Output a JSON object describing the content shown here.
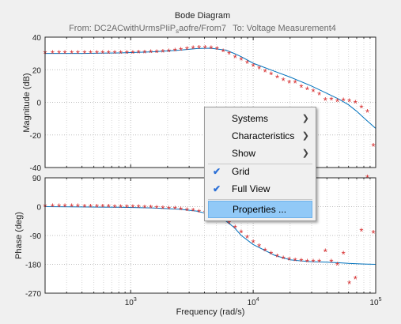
{
  "title": "Bode Diagram",
  "subtitle": {
    "from_prefix": "From: DC2ACwithUrmsPIiP",
    "from_subscript": "s",
    "from_suffix": "aofre/From7",
    "to": "To: Voltage Measurement4"
  },
  "xlabel": "Frequency  (rad/s)",
  "context_menu": {
    "items": [
      {
        "label": "Systems",
        "submenu": true
      },
      {
        "label": "Characteristics",
        "submenu": true
      },
      {
        "label": "Show",
        "submenu": true
      },
      {
        "label": "Grid",
        "checked": true
      },
      {
        "label": "Full View",
        "checked": true
      },
      {
        "label": "Properties ...",
        "highlighted": true
      }
    ]
  },
  "colors": {
    "line": "#0072bd",
    "markers": "#d62728",
    "highlight": "#91c9f7"
  },
  "chart_data": [
    {
      "type": "line",
      "panel": "magnitude",
      "ylabel": "Magnitude (dB)",
      "xscale": "log",
      "xlim": [
        200,
        100000
      ],
      "ylim": [
        -40,
        40
      ],
      "yticks": [
        40,
        20,
        0,
        -20,
        -40
      ],
      "grid": true,
      "series": [
        {
          "style": "line",
          "x": [
            200,
            400,
            800,
            1500,
            2500,
            3500,
            4500,
            6000,
            7000,
            8000,
            10000,
            15000,
            20000,
            30000,
            40000,
            50000,
            60000,
            70000,
            80000,
            100000
          ],
          "y": [
            30,
            30,
            30.3,
            31,
            32,
            33,
            33.2,
            32,
            30,
            28,
            24,
            19,
            15.5,
            10,
            5.5,
            2,
            -1.5,
            -5.5,
            -9.5,
            -16
          ]
        },
        {
          "style": "markers",
          "x": [
            200,
            230,
            260,
            290,
            330,
            370,
            420,
            470,
            530,
            590,
            660,
            740,
            830,
            930,
            1040,
            1160,
            1300,
            1460,
            1630,
            1830,
            2050,
            2300,
            2570,
            2880,
            3230,
            3610,
            4050,
            4530,
            5070,
            5680,
            6360,
            7120,
            7970,
            8930,
            10000,
            11200,
            12500,
            14000,
            15700,
            17600,
            19700,
            22000,
            24700,
            27600,
            30900,
            34600,
            38800,
            43400,
            48600,
            54400,
            60900,
            68200,
            76400,
            85500,
            95700
          ],
          "y": [
            30,
            30,
            30,
            30,
            30,
            30,
            30,
            30,
            30,
            30,
            30,
            30,
            30,
            30,
            30.1,
            30.2,
            30.3,
            30.5,
            30.6,
            30.8,
            31.1,
            31.4,
            31.9,
            32.4,
            32.9,
            33.2,
            33.3,
            33,
            32.4,
            31.1,
            29.5,
            27.5,
            26,
            24,
            22.1,
            20.5,
            18.6,
            17,
            15.1,
            13.3,
            11.8,
            12,
            9.2,
            7.7,
            6.6,
            4.5,
            1.3,
            1.5,
            0.5,
            1,
            0.5,
            -0.5,
            -3.5,
            -6,
            -27
          ]
        }
      ]
    },
    {
      "type": "line",
      "panel": "phase",
      "ylabel": "Phase (deg)",
      "xlabel": "Frequency  (rad/s)",
      "xscale": "log",
      "xlim": [
        200,
        100000
      ],
      "ylim": [
        -270,
        90
      ],
      "yticks": [
        90,
        0,
        -90,
        -180,
        -270
      ],
      "xticks": [
        "10^3",
        "10^4",
        "10^5"
      ],
      "grid": true,
      "series": [
        {
          "style": "line",
          "x": [
            200,
            400,
            800,
            1500,
            2500,
            3500,
            5000,
            6000,
            7000,
            8000,
            10000,
            15000,
            20000,
            30000,
            40000,
            50000,
            60000,
            70000,
            80000,
            100000
          ],
          "y": [
            0,
            -1,
            -2,
            -4,
            -8,
            -14,
            -30,
            -45,
            -65,
            -90,
            -118,
            -152,
            -166,
            -172,
            -173,
            -175,
            -177,
            -178,
            -179,
            -180
          ]
        },
        {
          "style": "markers",
          "x": [
            200,
            230,
            260,
            290,
            330,
            370,
            420,
            470,
            530,
            590,
            660,
            740,
            830,
            930,
            1040,
            1160,
            1300,
            1460,
            1630,
            1830,
            2050,
            2300,
            2570,
            2880,
            3230,
            3610,
            4050,
            4530,
            5070,
            5680,
            6360,
            7120,
            7970,
            8930,
            10000,
            11200,
            12500,
            14000,
            15700,
            17600,
            19700,
            22000,
            24700,
            27600,
            30900,
            34600,
            38800,
            43400,
            48600,
            54400,
            60900,
            68200,
            76400,
            85500,
            95700
          ],
          "y": [
            0,
            0,
            0,
            0,
            0,
            0,
            -1,
            -1,
            -1,
            -1,
            -1,
            -2,
            -2,
            -2,
            -3,
            -3,
            -4,
            -4,
            -5,
            -6,
            -7,
            -8,
            -10,
            -12,
            -14,
            -17,
            -20,
            -25,
            -30,
            -39,
            -52,
            -66,
            -81,
            -97,
            -112,
            -125,
            -138,
            -148,
            -156,
            -163,
            -166,
            -169,
            -170,
            -172,
            -172,
            -173,
            -141,
            -172,
            -183,
            -148,
            -240,
            -226,
            -76,
            90,
            -83
          ]
        }
      ]
    }
  ]
}
